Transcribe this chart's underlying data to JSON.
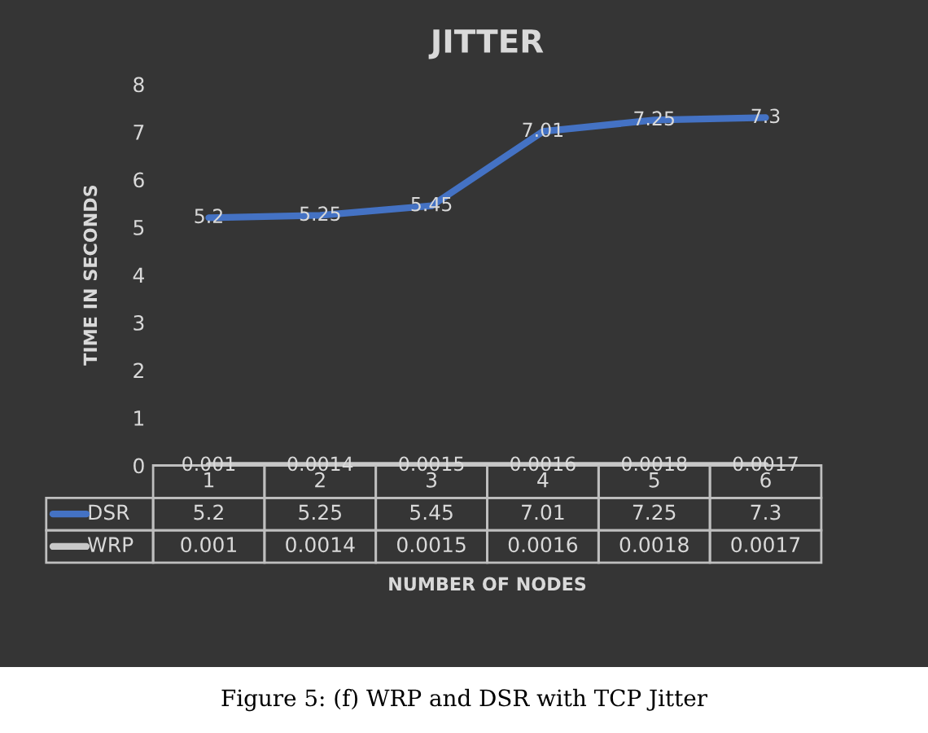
{
  "chart_data": {
    "type": "line",
    "title": "JITTER",
    "ylabel": "TIME IN SECONDS",
    "categories": [
      "1",
      "2",
      "3",
      "4",
      "5",
      "6"
    ],
    "series": [
      {
        "name": "DSR",
        "color": "#4472c4",
        "values": [
          5.2,
          5.25,
          5.45,
          7.01,
          7.25,
          7.3
        ]
      },
      {
        "name": "WRP",
        "color": "#c8c8c8",
        "values": [
          0.001,
          0.0014,
          0.0015,
          0.0016,
          0.0018,
          0.0017
        ]
      }
    ],
    "ylim": [
      0,
      8
    ],
    "yticks": [
      0,
      1,
      2,
      3,
      4,
      5,
      6,
      7,
      8
    ],
    "legend": "bottom",
    "data_labels": true,
    "marker": "none",
    "line_style": "solid",
    "annotations": [
      {
        "text": "5.2",
        "x": "1",
        "y": 5.2
      },
      {
        "text": "5.25",
        "x": "2",
        "y": 5.25
      },
      {
        "text": "5.45",
        "x": "3",
        "y": 5.45
      },
      {
        "text": "7.01",
        "x": "4",
        "y": 7.01
      },
      {
        "text": "7.25",
        "x": "5",
        "y": 7.25
      },
      {
        "text": "7.3",
        "x": "6",
        "y": 7.3
      },
      {
        "text": "0.001",
        "x": "1",
        "y": 0.001
      },
      {
        "text": "0.0014",
        "x": "2",
        "y": 0.0014
      },
      {
        "text": "0.0015",
        "x": "3",
        "y": 0.0015
      },
      {
        "text": "0.0016",
        "x": "4",
        "y": 0.0016
      },
      {
        "text": "0.0018",
        "x": "5",
        "y": 0.0018
      },
      {
        "text": "0.0017",
        "x": "6",
        "y": 0.0017
      },
      "NUMBER OF NODES",
      "Figure 5: (f) WRP and DSR with TCP Jitter"
    ]
  }
}
